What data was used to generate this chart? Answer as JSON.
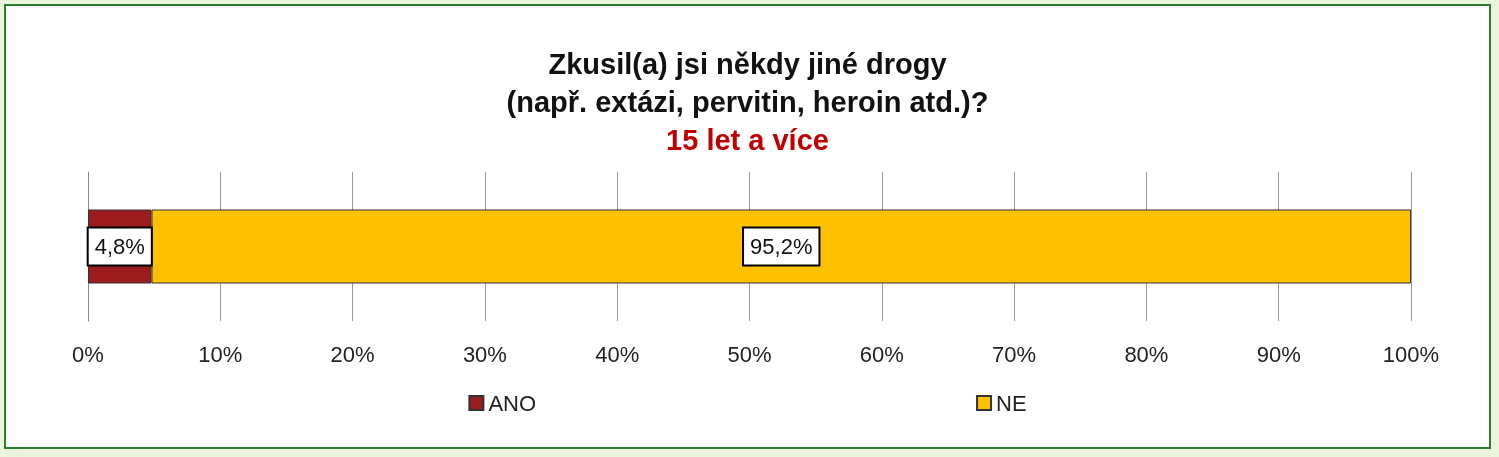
{
  "chart_data": {
    "type": "bar",
    "orientation": "horizontal",
    "stacked": true,
    "title": "Zkusil(a) jsi někdy jiné drogy\n(např. extázi, pervitin, heroin atd.)?",
    "subtitle": "15 let a více",
    "categories": [
      null
    ],
    "series": [
      {
        "name": "ANO",
        "color": "#9b1c1c",
        "values": [
          4.8
        ],
        "value_labels": [
          "4,8%"
        ]
      },
      {
        "name": "NE",
        "color": "#ffc000",
        "values": [
          95.2
        ],
        "value_labels": [
          "95,2%"
        ]
      }
    ],
    "xlim": [
      0,
      100
    ],
    "xticks": [
      {
        "value": 0,
        "label": "0%"
      },
      {
        "value": 10,
        "label": "10%"
      },
      {
        "value": 20,
        "label": "20%"
      },
      {
        "value": 30,
        "label": "30%"
      },
      {
        "value": 40,
        "label": "40%"
      },
      {
        "value": 50,
        "label": "50%"
      },
      {
        "value": 60,
        "label": "60%"
      },
      {
        "value": 70,
        "label": "70%"
      },
      {
        "value": 80,
        "label": "80%"
      },
      {
        "value": 90,
        "label": "90%"
      },
      {
        "value": 100,
        "label": "100%"
      }
    ],
    "grid": "x",
    "legend": "bottom"
  }
}
